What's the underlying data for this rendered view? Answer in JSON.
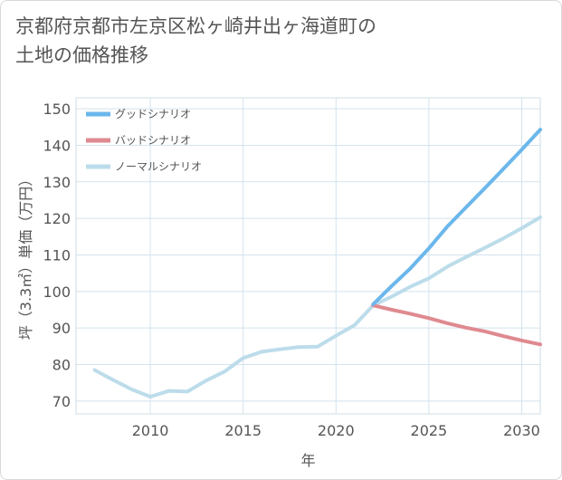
{
  "page": {
    "title": "京都府京都市左京区松ヶ崎井出ヶ海道町の\n土地の価格推移"
  },
  "chart_data": {
    "type": "line",
    "title": "京都府京都市左京区松ヶ崎井出ヶ海道町の土地の価格推移",
    "xlabel": "年",
    "ylabel": "坪（3.3㎡）単価（万円）",
    "xlim": [
      2006,
      2031
    ],
    "ylim": [
      66.5,
      153
    ],
    "xticks": [
      2010,
      2015,
      2020,
      2025,
      2030
    ],
    "yticks": [
      70,
      80,
      90,
      100,
      110,
      120,
      130,
      140,
      150
    ],
    "grid": true,
    "legend_position": "top-left",
    "series": [
      {
        "name": "グッドシナリオ",
        "color": "#6bb7ec",
        "points": [
          [
            2022,
            96.5
          ],
          [
            2023,
            101.5
          ],
          [
            2024,
            106.3
          ],
          [
            2025,
            111.8
          ],
          [
            2026,
            117.8
          ],
          [
            2027,
            123
          ],
          [
            2028,
            128.2
          ],
          [
            2029,
            133.5
          ],
          [
            2030,
            138.8
          ],
          [
            2031,
            144.3
          ]
        ]
      },
      {
        "name": "バッドシナリオ",
        "color": "#df8a90",
        "points": [
          [
            2022,
            96.2
          ],
          [
            2023,
            95
          ],
          [
            2024,
            93.9
          ],
          [
            2025,
            92.7
          ],
          [
            2026,
            91.3
          ],
          [
            2027,
            90.1
          ],
          [
            2028,
            89.1
          ],
          [
            2029,
            87.8
          ],
          [
            2030,
            86.6
          ],
          [
            2031,
            85.5
          ]
        ]
      },
      {
        "name": "ノーマルシナリオ",
        "color": "#bcdcea",
        "points": [
          [
            2007,
            78.5
          ],
          [
            2008,
            75.8
          ],
          [
            2009,
            73.2
          ],
          [
            2010,
            71.2
          ],
          [
            2011,
            72.8
          ],
          [
            2012,
            72.6
          ],
          [
            2013,
            75.6
          ],
          [
            2014,
            78.1
          ],
          [
            2015,
            81.8
          ],
          [
            2016,
            83.5
          ],
          [
            2017,
            84.2
          ],
          [
            2018,
            84.8
          ],
          [
            2019,
            84.9
          ],
          [
            2020,
            87.9
          ],
          [
            2021,
            90.8
          ],
          [
            2022,
            96.2
          ],
          [
            2023,
            98.6
          ],
          [
            2024,
            101.3
          ],
          [
            2025,
            103.6
          ],
          [
            2026,
            106.8
          ],
          [
            2027,
            109.4
          ],
          [
            2028,
            111.9
          ],
          [
            2029,
            114.5
          ],
          [
            2030,
            117.3
          ],
          [
            2031,
            120.3
          ]
        ]
      }
    ]
  }
}
